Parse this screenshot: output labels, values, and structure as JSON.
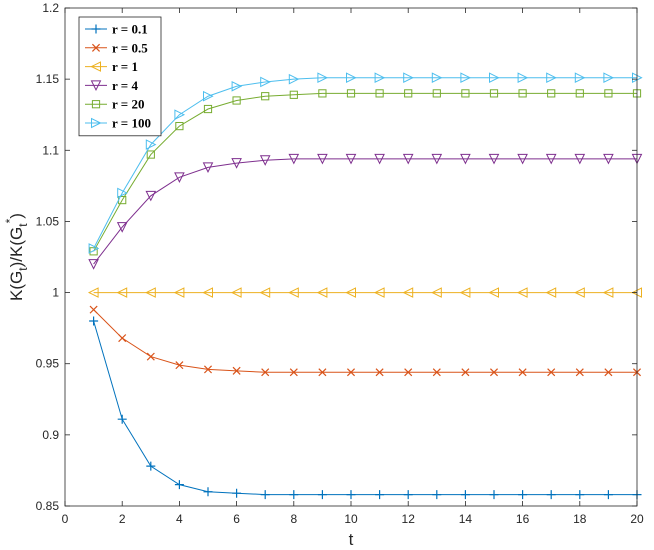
{
  "chart_data": {
    "type": "line",
    "xlabel": "t",
    "ylabel": "K(G_t)/K(G_t*)",
    "ylabel_parts": {
      "main1": "K(G",
      "sub1": "t",
      "main2": ")/K(G",
      "sub2": "t",
      "sup2": "*",
      "main3": ")"
    },
    "xlim": [
      0,
      20
    ],
    "ylim": [
      0.85,
      1.2
    ],
    "xticks": [
      0,
      2,
      4,
      6,
      8,
      10,
      12,
      14,
      16,
      18,
      20
    ],
    "xtick_labels": [
      "0",
      "2",
      "4",
      "6",
      "8",
      "10",
      "12",
      "14",
      "16",
      "18",
      "20"
    ],
    "yticks": [
      0.85,
      0.9,
      0.95,
      1.0,
      1.05,
      1.1,
      1.15,
      1.2
    ],
    "ytick_labels": [
      "0.85",
      "0.9",
      "0.95",
      "1",
      "1.05",
      "1.1",
      "1.15",
      "1.2"
    ],
    "grid": false,
    "legend_position": "top-left",
    "x": [
      1,
      2,
      3,
      4,
      5,
      6,
      7,
      8,
      9,
      10,
      11,
      12,
      13,
      14,
      15,
      16,
      17,
      18,
      19,
      20
    ],
    "series": [
      {
        "name": "r = 0.1",
        "color": "#0072BD",
        "marker": "plus",
        "values": [
          0.98,
          0.911,
          0.878,
          0.865,
          0.86,
          0.859,
          0.858,
          0.858,
          0.858,
          0.858,
          0.858,
          0.858,
          0.858,
          0.858,
          0.858,
          0.858,
          0.858,
          0.858,
          0.858,
          0.858
        ]
      },
      {
        "name": "r = 0.5",
        "color": "#D95319",
        "marker": "x",
        "values": [
          0.988,
          0.968,
          0.955,
          0.949,
          0.946,
          0.945,
          0.944,
          0.944,
          0.944,
          0.944,
          0.944,
          0.944,
          0.944,
          0.944,
          0.944,
          0.944,
          0.944,
          0.944,
          0.944,
          0.944
        ]
      },
      {
        "name": "r = 1",
        "color": "#EDB120",
        "marker": "triangle-left",
        "values": [
          1.0,
          1.0,
          1.0,
          1.0,
          1.0,
          1.0,
          1.0,
          1.0,
          1.0,
          1.0,
          1.0,
          1.0,
          1.0,
          1.0,
          1.0,
          1.0,
          1.0,
          1.0,
          1.0,
          1.0
        ]
      },
      {
        "name": "r = 4",
        "color": "#7E2F8E",
        "marker": "triangle-down",
        "values": [
          1.02,
          1.046,
          1.068,
          1.081,
          1.088,
          1.091,
          1.093,
          1.094,
          1.094,
          1.094,
          1.094,
          1.094,
          1.094,
          1.094,
          1.094,
          1.094,
          1.094,
          1.094,
          1.094,
          1.094
        ]
      },
      {
        "name": "r = 20",
        "color": "#77AC30",
        "marker": "square",
        "values": [
          1.029,
          1.065,
          1.097,
          1.117,
          1.129,
          1.135,
          1.138,
          1.139,
          1.14,
          1.14,
          1.14,
          1.14,
          1.14,
          1.14,
          1.14,
          1.14,
          1.14,
          1.14,
          1.14,
          1.14
        ]
      },
      {
        "name": "r = 100",
        "color": "#4DBEEE",
        "marker": "triangle-right",
        "values": [
          1.031,
          1.07,
          1.104,
          1.125,
          1.138,
          1.145,
          1.148,
          1.15,
          1.151,
          1.151,
          1.151,
          1.151,
          1.151,
          1.151,
          1.151,
          1.151,
          1.151,
          1.151,
          1.151,
          1.151
        ]
      }
    ]
  }
}
